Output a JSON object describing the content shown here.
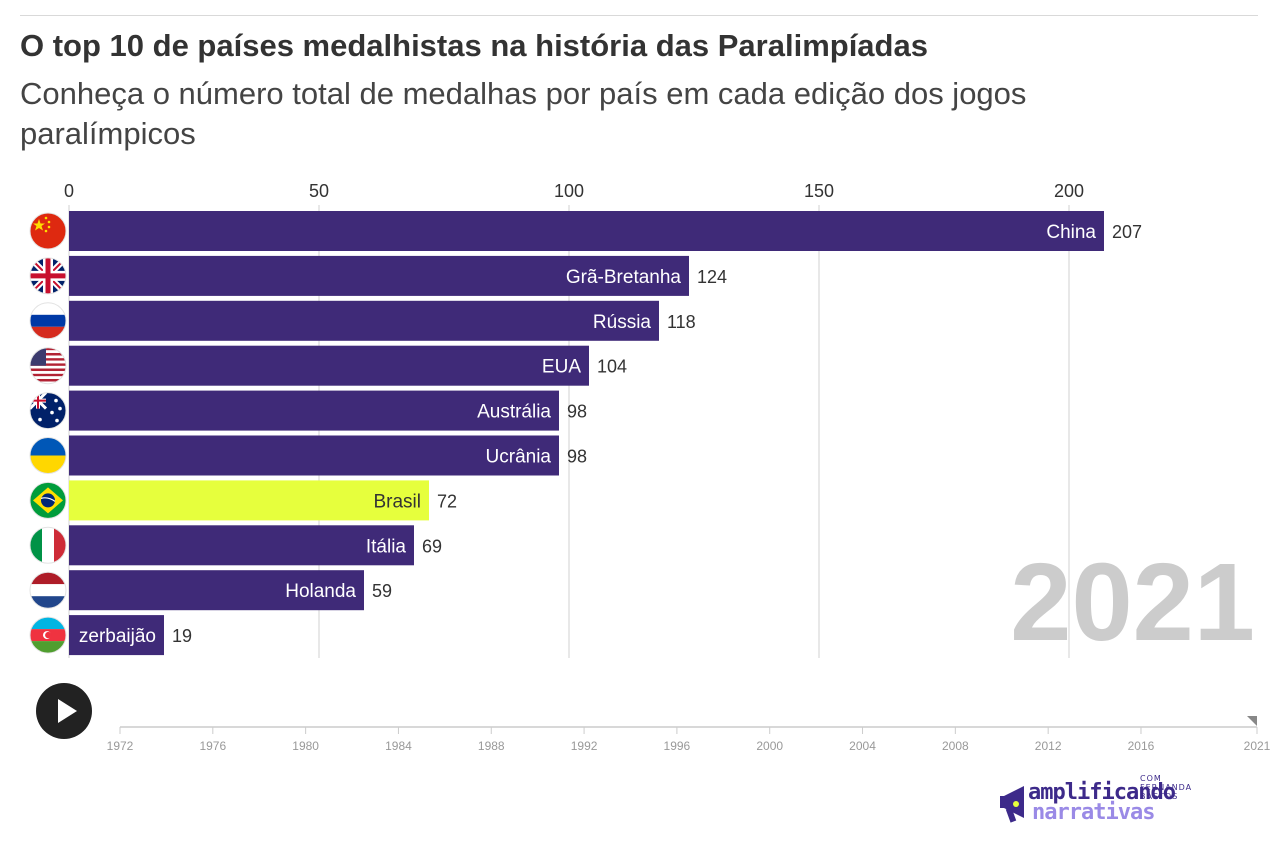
{
  "title": "O top 10 de países medalhistas na história das Paralimpíadas",
  "subtitle": "Conheça o número total de medalhas por país em cada edição dos jogos paralímpicos",
  "year_label": "2021",
  "colors": {
    "bar": "#3f2a78",
    "highlight": "#e6ff3d",
    "year": "#cccccc",
    "grid": "#e0e0e0",
    "axis_text": "#333333"
  },
  "chart_data": {
    "type": "bar",
    "orientation": "horizontal",
    "categories": [
      "China",
      "Grã-Bretanha",
      "Rússia",
      "EUA",
      "Austrália",
      "Ucrânia",
      "Brasil",
      "Itália",
      "Holanda",
      "zerbaijão"
    ],
    "values": [
      207,
      124,
      118,
      104,
      98,
      98,
      72,
      69,
      59,
      19
    ],
    "flags": [
      "china-flag-icon",
      "uk-flag-icon",
      "russia-flag-icon",
      "usa-flag-icon",
      "australia-flag-icon",
      "ukraine-flag-icon",
      "brazil-flag-icon",
      "italy-flag-icon",
      "netherlands-flag-icon",
      "azerbaijan-flag-icon"
    ],
    "highlight": "Brasil",
    "xlim": [
      0,
      207
    ],
    "x_ticks": [
      0,
      50,
      100,
      150,
      200
    ],
    "grid": true,
    "axis_position": "top"
  },
  "timeline": {
    "years": [
      "1972",
      "1976",
      "1980",
      "1984",
      "1988",
      "1992",
      "1996",
      "2000",
      "2004",
      "2008",
      "2012",
      "2016",
      "2021"
    ],
    "current": "2021"
  },
  "logo": {
    "line1": "amplificando",
    "line2": "narrativas",
    "sub": "COM FERNANDA BASTOS"
  }
}
